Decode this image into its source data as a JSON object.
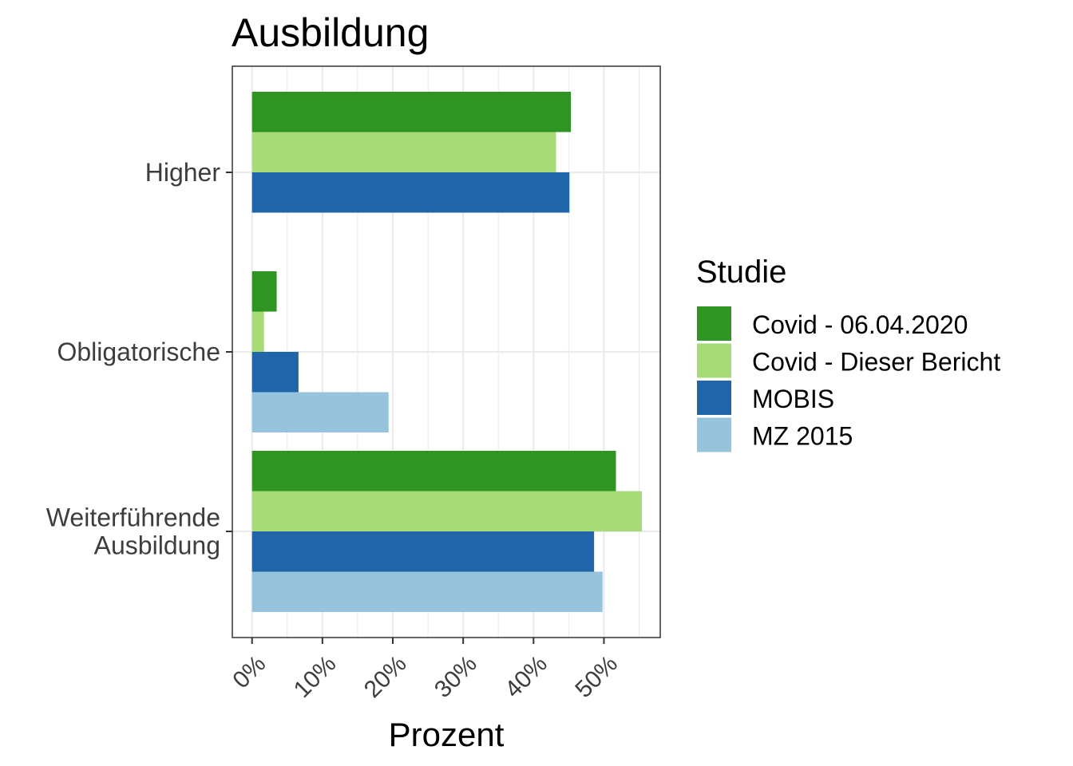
{
  "chart_data": {
    "type": "bar",
    "orientation": "horizontal",
    "title": "Ausbildung",
    "xlabel": "Prozent",
    "ylabel": "",
    "xlim": [
      -0.028,
      0.58
    ],
    "x_ticks": [
      0,
      0.1,
      0.2,
      0.3,
      0.4,
      0.5
    ],
    "x_tick_labels": [
      "0%",
      "10%",
      "20%",
      "30%",
      "40%",
      "50%"
    ],
    "grid": true,
    "legend_title": "Studie",
    "legend_position": "right",
    "categories": [
      "Higher",
      "Obligatorische",
      "Weiterführende Ausbildung"
    ],
    "category_labels": [
      [
        "Higher"
      ],
      [
        "Obligatorische"
      ],
      [
        "Weiterführende",
        "Ausbildung"
      ]
    ],
    "series": [
      {
        "name": "Covid - 06.04.2020",
        "color": "#2e9422",
        "values": [
          0.453,
          0.035,
          0.517
        ]
      },
      {
        "name": "Covid - Dieser Bericht",
        "color": "#a6db78",
        "values": [
          0.432,
          0.017,
          0.554
        ]
      },
      {
        "name": "MOBIS",
        "color": "#1f65a8",
        "values": [
          0.451,
          0.066,
          0.486
        ]
      },
      {
        "name": "MZ 2015",
        "color": "#97c3dc",
        "values": [
          null,
          0.194,
          0.498
        ]
      }
    ]
  }
}
